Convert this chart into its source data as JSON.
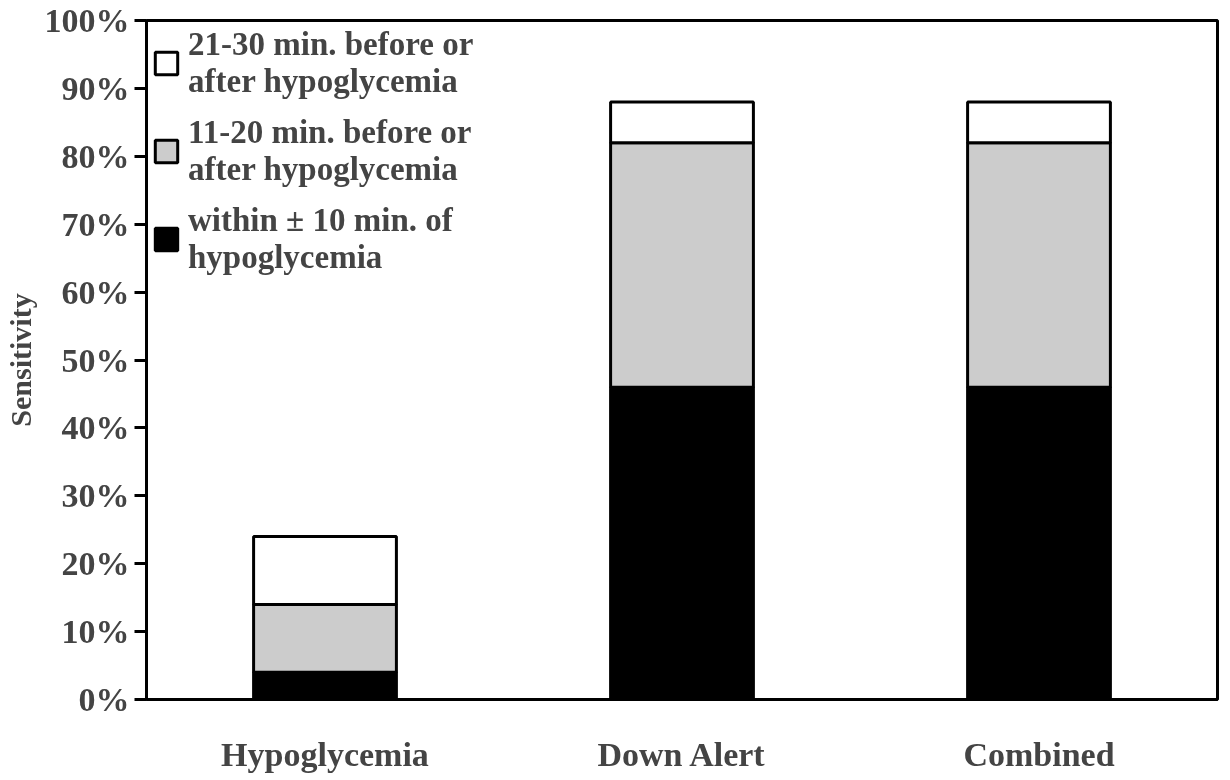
{
  "chart_data": {
    "type": "bar",
    "stacked": true,
    "ylabel": "Sensitivity",
    "categories": [
      "Hypoglycemia",
      "Down Alert",
      "Combined"
    ],
    "series": [
      {
        "name": "within ± 10 min. of hypoglycemia",
        "color": "#000000",
        "values": [
          4,
          46,
          46
        ]
      },
      {
        "name": "11-20 min. before or after hypoglycemia",
        "color": "#cccccc",
        "values": [
          10,
          36,
          36
        ]
      },
      {
        "name": "21-30 min. before or after hypoglycemia",
        "color": "#ffffff",
        "values": [
          10,
          6,
          6
        ]
      }
    ],
    "ylim": [
      0,
      100
    ],
    "yticks": [
      {
        "value": 0,
        "label": "0%"
      },
      {
        "value": 10,
        "label": "10%"
      },
      {
        "value": 20,
        "label": "20%"
      },
      {
        "value": 30,
        "label": "30%"
      },
      {
        "value": 40,
        "label": "40%"
      },
      {
        "value": 50,
        "label": "50%"
      },
      {
        "value": 60,
        "label": "60%"
      },
      {
        "value": 70,
        "label": "70%"
      },
      {
        "value": 80,
        "label": "80%"
      },
      {
        "value": 90,
        "label": "90%"
      },
      {
        "value": 100,
        "label": "100%"
      }
    ],
    "grid": false,
    "legend": "top left"
  }
}
